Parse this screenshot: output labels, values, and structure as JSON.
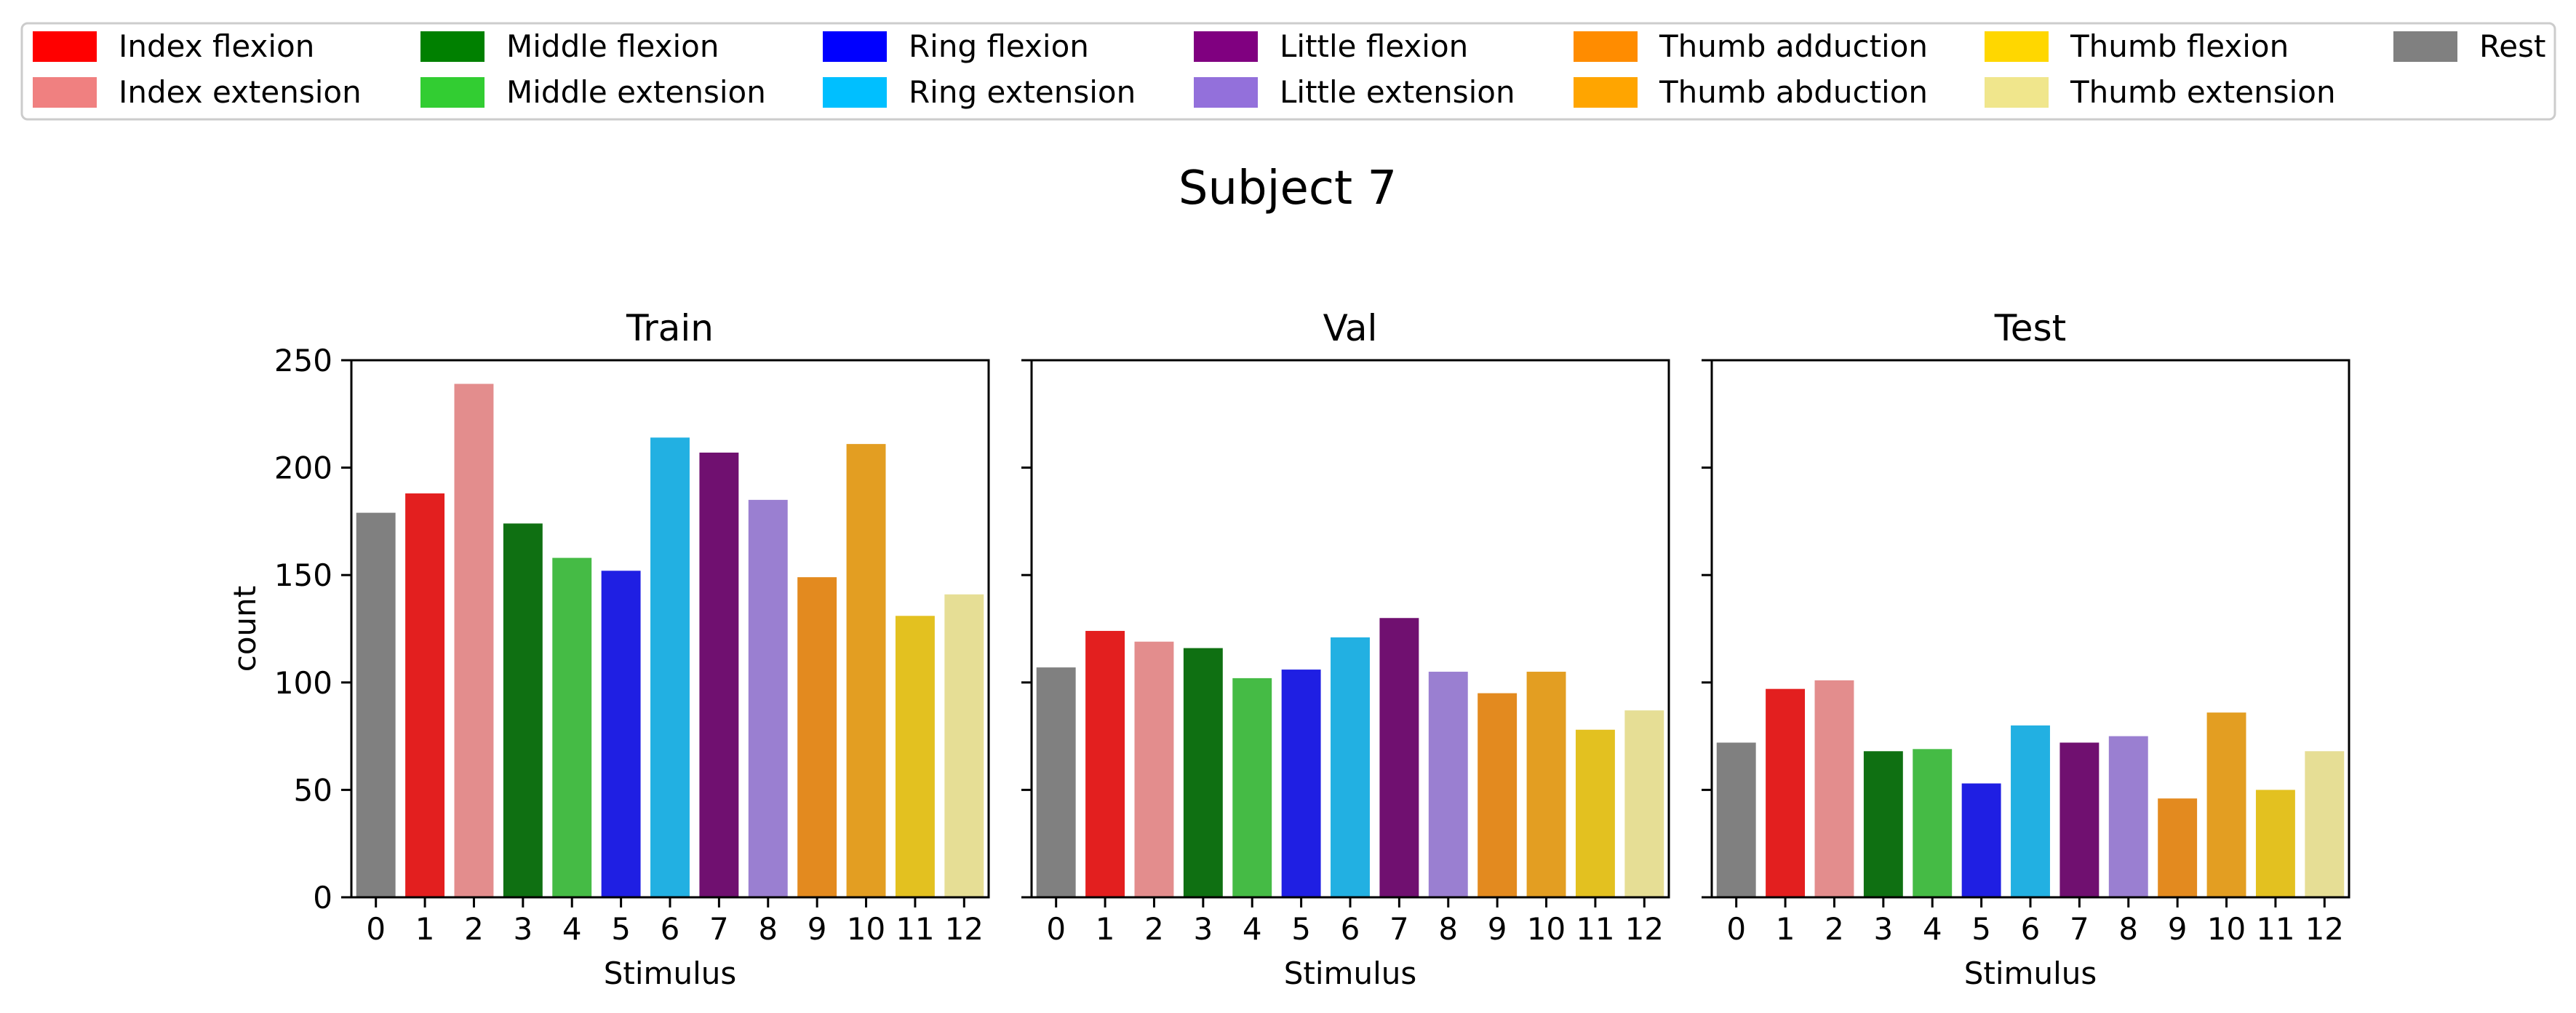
{
  "figure": {
    "suptitle": "Subject 7"
  },
  "legend": {
    "placement": "top",
    "entries": [
      {
        "label": "Index flexion",
        "color": "#ff0000"
      },
      {
        "label": "Index extension",
        "color": "#f08080"
      },
      {
        "label": "Middle flexion",
        "color": "#008000"
      },
      {
        "label": "Middle extension",
        "color": "#32cd32"
      },
      {
        "label": "Ring flexion",
        "color": "#0000ff"
      },
      {
        "label": "Ring extension",
        "color": "#00bfff"
      },
      {
        "label": "Little flexion",
        "color": "#800080"
      },
      {
        "label": "Little extension",
        "color": "#9370db"
      },
      {
        "label": "Thumb adduction",
        "color": "#ff8c00"
      },
      {
        "label": "Thumb abduction",
        "color": "#ffa500"
      },
      {
        "label": "Thumb flexion",
        "color": "#ffd700"
      },
      {
        "label": "Thumb extension",
        "color": "#f0e68c"
      },
      {
        "label": "Rest",
        "color": "#808080"
      }
    ]
  },
  "bar_colors": [
    "#808080",
    "#e31f1f",
    "#e38d8d",
    "#0f7012",
    "#45bb45",
    "#1f1fe3",
    "#22b0e2",
    "#701070",
    "#9a7fd1",
    "#e38a1f",
    "#e39e22",
    "#e3c120",
    "#e6de95"
  ],
  "chart_data": [
    {
      "type": "bar",
      "title": "Train",
      "xlabel": "Stimulus",
      "ylabel": "count",
      "categories": [
        "0",
        "1",
        "2",
        "3",
        "4",
        "5",
        "6",
        "7",
        "8",
        "9",
        "10",
        "11",
        "12"
      ],
      "values": [
        179,
        188,
        239,
        174,
        158,
        152,
        214,
        207,
        185,
        149,
        211,
        131,
        141
      ],
      "ylim": [
        0,
        250
      ],
      "yticks": [
        "0",
        "50",
        "100",
        "150",
        "200",
        "250"
      ],
      "grid": false
    },
    {
      "type": "bar",
      "title": "Val",
      "xlabel": "Stimulus",
      "ylabel": "",
      "categories": [
        "0",
        "1",
        "2",
        "3",
        "4",
        "5",
        "6",
        "7",
        "8",
        "9",
        "10",
        "11",
        "12"
      ],
      "values": [
        107,
        124,
        119,
        116,
        102,
        106,
        121,
        130,
        105,
        95,
        105,
        78,
        87
      ],
      "ylim": [
        0,
        250
      ],
      "grid": false
    },
    {
      "type": "bar",
      "title": "Test",
      "xlabel": "Stimulus",
      "ylabel": "",
      "categories": [
        "0",
        "1",
        "2",
        "3",
        "4",
        "5",
        "6",
        "7",
        "8",
        "9",
        "10",
        "11",
        "12"
      ],
      "values": [
        72,
        97,
        101,
        68,
        69,
        53,
        80,
        72,
        75,
        46,
        86,
        50,
        68
      ],
      "ylim": [
        0,
        250
      ],
      "grid": false
    }
  ]
}
